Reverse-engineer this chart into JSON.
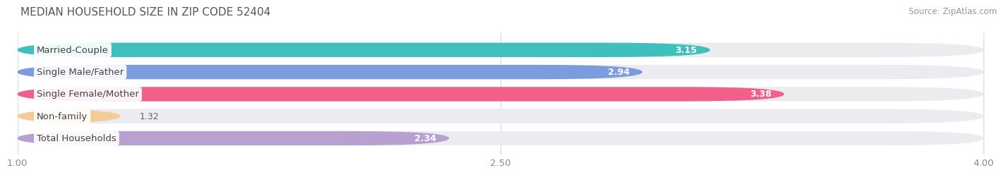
{
  "title": "MEDIAN HOUSEHOLD SIZE IN ZIP CODE 52404",
  "source": "Source: ZipAtlas.com",
  "categories": [
    "Married-Couple",
    "Single Male/Father",
    "Single Female/Mother",
    "Non-family",
    "Total Households"
  ],
  "values": [
    3.15,
    2.94,
    3.38,
    1.32,
    2.34
  ],
  "bar_colors": [
    "#40bfbf",
    "#7b9de0",
    "#f0608a",
    "#f5cc98",
    "#b8a0d0"
  ],
  "bar_bg_color": "#ebebf0",
  "xticks": [
    1.0,
    2.5,
    4.0
  ],
  "xmin": 1.0,
  "xmax": 4.0,
  "label_fontsize": 9.5,
  "value_fontsize": 9,
  "title_fontsize": 11,
  "source_fontsize": 8.5,
  "background_color": "#ffffff",
  "grid_color": "#d8d8de",
  "value_inside_color": "#ffffff",
  "value_outside_color": "#666666"
}
